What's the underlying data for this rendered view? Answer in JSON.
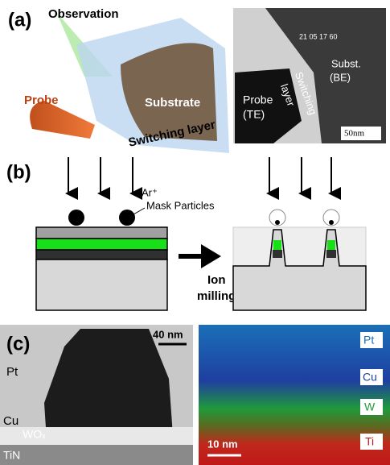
{
  "panel_a": {
    "label": "(a)",
    "schematic": {
      "observation": "Observation",
      "probe": "Probe",
      "substrate": "Substrate",
      "switching_layer": "Switching layer"
    },
    "tem": {
      "timestamp": "21 05 17 60",
      "substrate": [
        "Subst.",
        "(BE)"
      ],
      "switching": [
        "Switching",
        "layer"
      ],
      "probe": [
        "Probe",
        "(TE)"
      ],
      "scale": "50nm"
    }
  },
  "panel_b": {
    "label": "(b)",
    "beam": "Ar⁺",
    "mask": "Mask Particles",
    "process": [
      "Ion",
      "milling"
    ]
  },
  "panel_c": {
    "label": "(c)",
    "tem": {
      "scale": "40 nm",
      "layers": [
        "Pt",
        "Cu",
        "WOₓ",
        "TiN"
      ]
    },
    "eds": {
      "elements": [
        "Pt",
        "Cu",
        "W",
        "Ti"
      ],
      "scale": "10 nm"
    }
  }
}
